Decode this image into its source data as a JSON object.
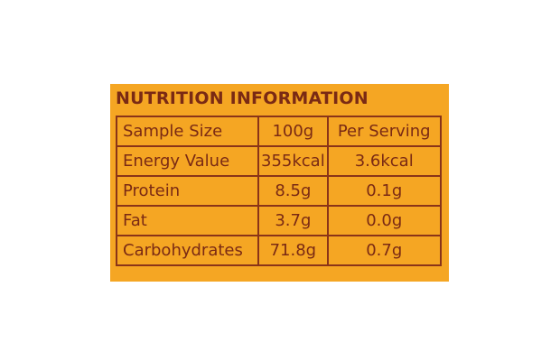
{
  "header": {
    "title": "NUTRITION INFORMATION"
  },
  "table": {
    "rows": [
      [
        "Sample Size",
        "100g",
        "Per Serving"
      ],
      [
        "Energy Value",
        "355kcal",
        "3.6kcal"
      ],
      [
        "Protein",
        "8.5g",
        "0.1g"
      ],
      [
        "Fat",
        "3.7g",
        "0.0g"
      ],
      [
        "Carbohydrates",
        "71.8g",
        "0.7g"
      ]
    ]
  }
}
